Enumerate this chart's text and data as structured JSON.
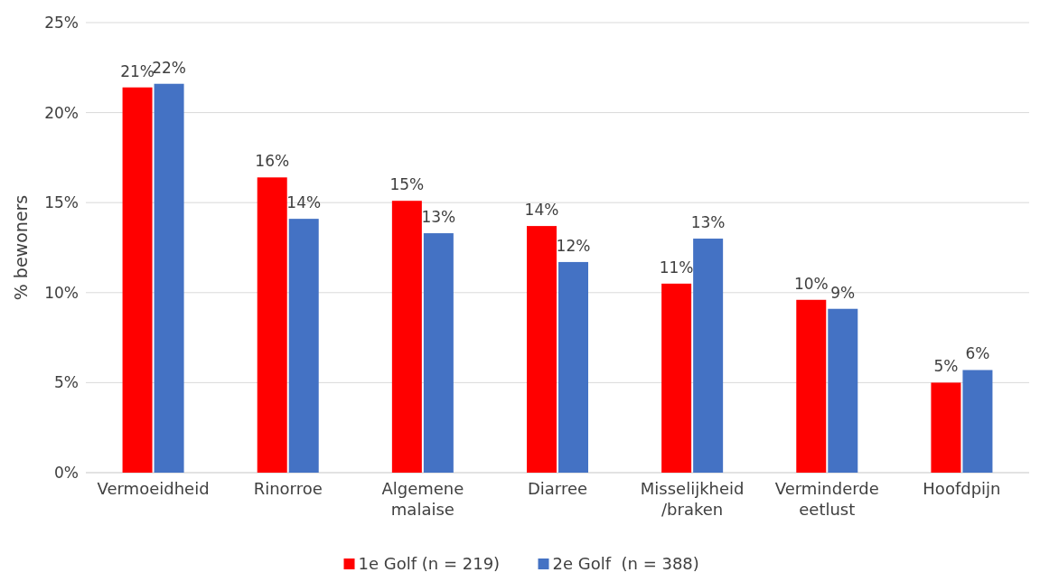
{
  "chart_data": {
    "type": "bar",
    "ylabel": "% bewoners",
    "categories": [
      "Vermoeidheid",
      "Rinorroe",
      "Algemene\nmalaise",
      "Diarree",
      "Misselijkheid\n/braken",
      "Verminderde\neetlust",
      "Hoofdpijn"
    ],
    "series": [
      {
        "name": "1e Golf (n = 219)",
        "color": "#ff0000",
        "values": [
          21.4,
          16.4,
          15.1,
          13.7,
          10.5,
          9.6,
          5.0
        ],
        "value_labels": [
          "21%",
          "16%",
          "15%",
          "14%",
          "11%",
          "10%",
          "5%"
        ]
      },
      {
        "name": "2e Golf  (n = 388)",
        "color": "#4472c4",
        "values": [
          21.6,
          14.1,
          13.3,
          11.7,
          13.0,
          9.1,
          5.7
        ],
        "value_labels": [
          "22%",
          "14%",
          "13%",
          "12%",
          "13%",
          "9%",
          "6%"
        ]
      }
    ],
    "ylim": [
      0,
      25
    ],
    "yticks": [
      {
        "value": 0,
        "label": "0%"
      },
      {
        "value": 5,
        "label": "5%"
      },
      {
        "value": 10,
        "label": "10%"
      },
      {
        "value": 15,
        "label": "15%"
      },
      {
        "value": 20,
        "label": "20%"
      },
      {
        "value": 25,
        "label": "25%"
      }
    ],
    "grid": "y",
    "legend": "bottom"
  }
}
